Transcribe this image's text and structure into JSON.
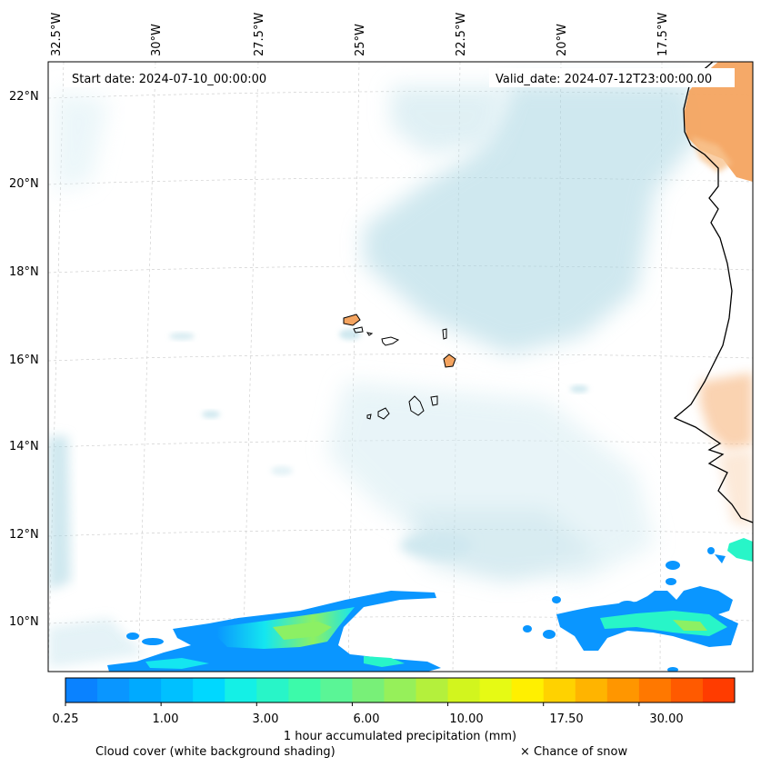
{
  "header": {
    "start_date": "Start date: 2024-07-10_00:00:00",
    "valid_date": "Valid_date: 2024-07-12T23:00:00.00"
  },
  "longitude_labels": [
    "32.5°W",
    "30°W",
    "27.5°W",
    "25°W",
    "22.5°W",
    "20°W",
    "17.5°W"
  ],
  "latitude_labels": [
    "22°N",
    "20°N",
    "18°N",
    "16°N",
    "14°N",
    "12°N",
    "10°N"
  ],
  "colorbar": {
    "title": "1 hour accumulated precipitation (mm)",
    "tick_labels": [
      "0.25",
      "1.00",
      "3.00",
      "6.00",
      "10.00",
      "17.50",
      "30.00"
    ],
    "colors": [
      "#0a82ff",
      "#0a96ff",
      "#00aaff",
      "#00c0ff",
      "#00d8ff",
      "#14f0e6",
      "#28f5c8",
      "#3cfaaa",
      "#5af596",
      "#78f078",
      "#96f05a",
      "#b4f03c",
      "#d2f51e",
      "#e6fa14",
      "#fff000",
      "#ffd200",
      "#ffb400",
      "#ff9600",
      "#ff7800",
      "#ff5a00",
      "#ff3c00"
    ]
  },
  "footer": {
    "cloud_label": "Cloud cover (white background shading)",
    "snow_label": "× Chance of snow"
  },
  "colors": {
    "cloud": "#a8d5e2",
    "land_warm": "#f4a460",
    "coast": "#000000"
  }
}
